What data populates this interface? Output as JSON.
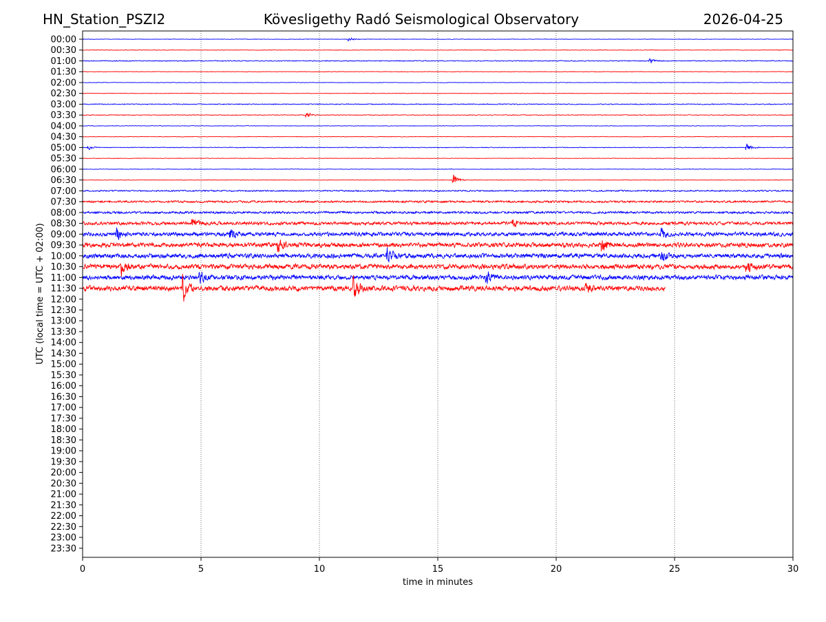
{
  "header": {
    "station": "HN_Station_PSZI2",
    "title": "Kövesligethy Radó Seismological Observatory",
    "date": "2026-04-25"
  },
  "chart_data": {
    "type": "line",
    "subtype": "helicorder",
    "xlabel": "time in minutes",
    "ylabel": "UTC (local time = UTC + 02:00)",
    "xlim": [
      0,
      30
    ],
    "x_ticks": [
      "0",
      "5",
      "10",
      "15",
      "20",
      "25",
      "30"
    ],
    "x_tick_values": [
      0,
      5,
      10,
      15,
      20,
      25,
      30
    ],
    "grid": "vertical dotted at 5-minute ticks",
    "row_labels": [
      "00:00",
      "00:30",
      "01:00",
      "01:30",
      "02:00",
      "02:30",
      "03:00",
      "03:30",
      "04:00",
      "04:30",
      "05:00",
      "05:30",
      "06:00",
      "06:30",
      "07:00",
      "07:30",
      "08:00",
      "08:30",
      "09:00",
      "09:30",
      "10:00",
      "10:30",
      "11:00",
      "11:30",
      "12:00",
      "12:30",
      "13:00",
      "13:30",
      "14:00",
      "14:30",
      "15:00",
      "15:30",
      "16:00",
      "16:30",
      "17:00",
      "17:30",
      "18:00",
      "18:30",
      "19:00",
      "19:30",
      "20:00",
      "20:30",
      "21:00",
      "21:30",
      "22:00",
      "22:30",
      "23:00",
      "23:30"
    ],
    "trace_colors": [
      "#0000ff",
      "#ff0000"
    ],
    "traces_recorded_rows": 24,
    "last_trace_end_minute": 24.6,
    "noise_level": [
      0.3,
      0.3,
      0.5,
      0.3,
      0.3,
      0.3,
      0.5,
      0.4,
      0.3,
      0.3,
      0.4,
      0.3,
      0.3,
      0.3,
      0.8,
      1.2,
      1.3,
      1.8,
      2.2,
      2.6,
      2.6,
      2.8,
      2.6,
      3.0
    ],
    "events": [
      {
        "row": 0,
        "minute": 11.3,
        "amplitude": 2
      },
      {
        "row": 2,
        "minute": 24.0,
        "amplitude": 2
      },
      {
        "row": 7,
        "minute": 9.5,
        "amplitude": 3
      },
      {
        "row": 10,
        "minute": 0.3,
        "amplitude": 2
      },
      {
        "row": 10,
        "minute": 28.1,
        "amplitude": 4
      },
      {
        "row": 13,
        "minute": 15.7,
        "amplitude": 6
      },
      {
        "row": 17,
        "minute": 4.7,
        "amplitude": 5
      },
      {
        "row": 17,
        "minute": 18.2,
        "amplitude": 5
      },
      {
        "row": 18,
        "minute": 1.5,
        "amplitude": 6
      },
      {
        "row": 18,
        "minute": 6.3,
        "amplitude": 6
      },
      {
        "row": 18,
        "minute": 24.5,
        "amplitude": 6
      },
      {
        "row": 19,
        "minute": 8.3,
        "amplitude": 6
      },
      {
        "row": 19,
        "minute": 22.0,
        "amplitude": 9
      },
      {
        "row": 20,
        "minute": 12.9,
        "amplitude": 8
      },
      {
        "row": 20,
        "minute": 24.5,
        "amplitude": 6
      },
      {
        "row": 21,
        "minute": 1.7,
        "amplitude": 8
      },
      {
        "row": 21,
        "minute": 28.1,
        "amplitude": 6
      },
      {
        "row": 22,
        "minute": 5.0,
        "amplitude": 7
      },
      {
        "row": 22,
        "minute": 17.1,
        "amplitude": 7
      },
      {
        "row": 23,
        "minute": 4.3,
        "amplitude": 13
      },
      {
        "row": 23,
        "minute": 11.5,
        "amplitude": 13
      },
      {
        "row": 23,
        "minute": 21.3,
        "amplitude": 5
      }
    ]
  }
}
